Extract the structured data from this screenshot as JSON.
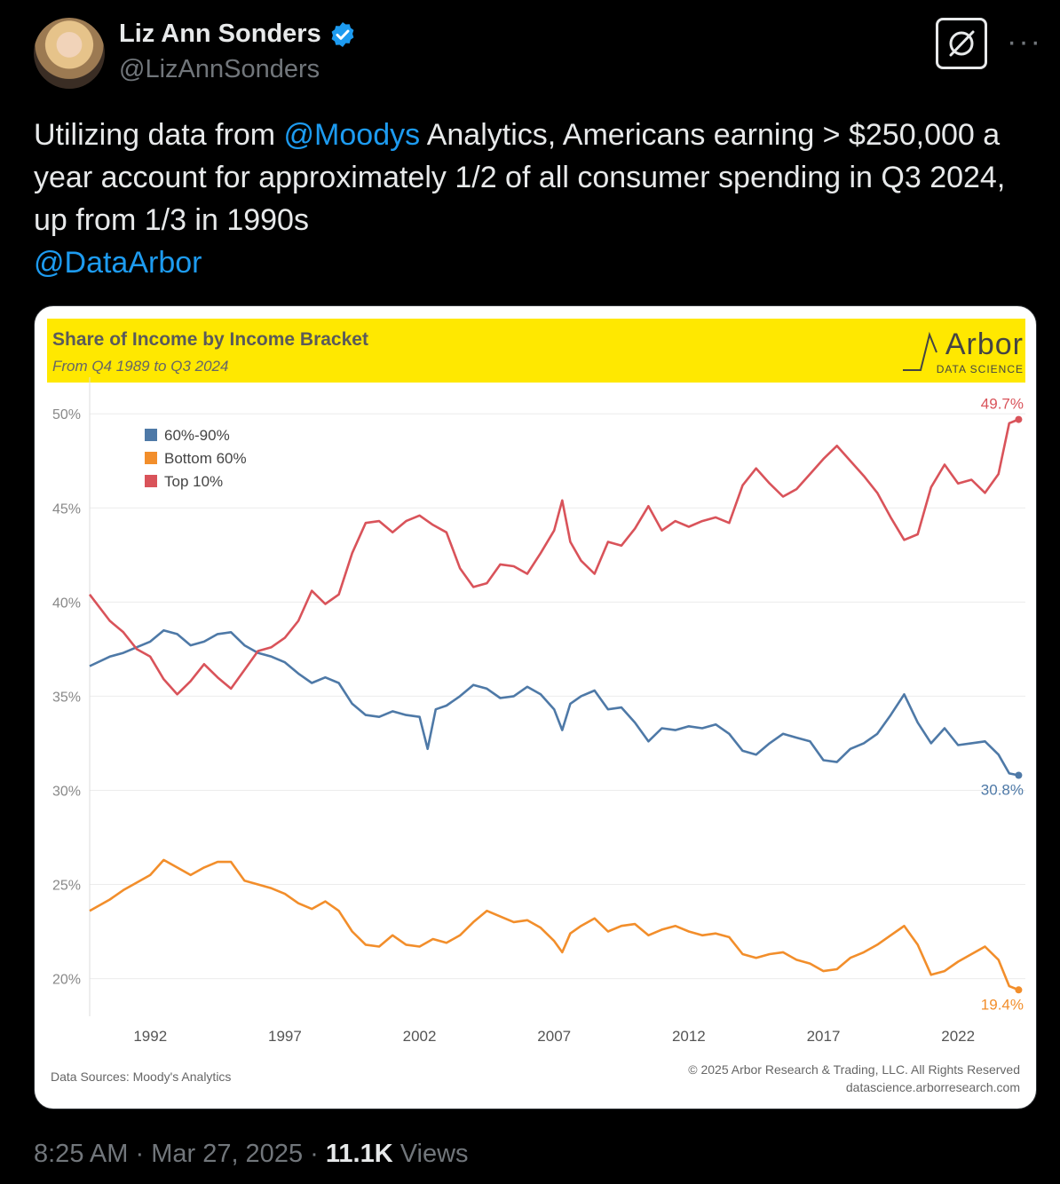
{
  "author": {
    "name": "Liz Ann Sonders",
    "handle": "@LizAnnSonders"
  },
  "tweet": {
    "part1": "Utilizing data from ",
    "mention1": "@Moodys",
    "part2": " Analytics, Americans earning > $250,000 a year account for approximately 1/2 of all consumer spending in Q3 2024, up from 1/3 in 1990s",
    "mention2": "@DataArbor"
  },
  "footer": {
    "time": "8:25 AM",
    "date": "Mar 27, 2025",
    "views_count": "11.1K",
    "views_label": " Views"
  },
  "icons": {
    "verified": "verified-badge-icon",
    "grok": "grok-icon",
    "more": "more-icon"
  },
  "colors": {
    "top10": "#d9535a",
    "mid": "#4e79a7",
    "bottom": "#f28e2b",
    "header": "#ffe800",
    "link": "#1d9bf0"
  },
  "chart": {
    "brand_word": "Arbor",
    "brand_sub": "DATA SCIENCE",
    "source_left": "Data Sources: Moody's Analytics",
    "copyright": "© 2025 Arbor Research & Trading, LLC. All Rights Reserved",
    "site": "datascience.arborresearch.com"
  },
  "chart_data": {
    "type": "line",
    "title": "Share of Income by Income Bracket",
    "subtitle": "From Q4 1989 to Q3 2024",
    "xlim": [
      1989.75,
      2024.5
    ],
    "ylim": [
      18,
      51
    ],
    "xticks": [
      1992,
      1997,
      2002,
      2007,
      2012,
      2017,
      2022
    ],
    "yticks": [
      20,
      25,
      30,
      35,
      40,
      45,
      50
    ],
    "ytick_labels": [
      "20%",
      "25%",
      "30%",
      "35%",
      "40%",
      "45%",
      "50%"
    ],
    "legend_position": "top-left",
    "grid": "horizontal",
    "series": [
      {
        "name": "60%-90%",
        "color": "#4e79a7",
        "end_label": "30.8%",
        "points": [
          [
            1989.75,
            36.6
          ],
          [
            1990.5,
            37.1
          ],
          [
            1991.0,
            37.3
          ],
          [
            1991.5,
            37.6
          ],
          [
            1992.0,
            37.9
          ],
          [
            1992.5,
            38.5
          ],
          [
            1993.0,
            38.3
          ],
          [
            1993.5,
            37.7
          ],
          [
            1994.0,
            37.9
          ],
          [
            1994.5,
            38.3
          ],
          [
            1995.0,
            38.4
          ],
          [
            1995.5,
            37.7
          ],
          [
            1996.0,
            37.3
          ],
          [
            1996.5,
            37.1
          ],
          [
            1997.0,
            36.8
          ],
          [
            1997.5,
            36.2
          ],
          [
            1998.0,
            35.7
          ],
          [
            1998.5,
            36.0
          ],
          [
            1999.0,
            35.7
          ],
          [
            1999.5,
            34.6
          ],
          [
            2000.0,
            34.0
          ],
          [
            2000.5,
            33.9
          ],
          [
            2001.0,
            34.2
          ],
          [
            2001.5,
            34.0
          ],
          [
            2002.0,
            33.9
          ],
          [
            2002.3,
            32.2
          ],
          [
            2002.6,
            34.3
          ],
          [
            2003.0,
            34.5
          ],
          [
            2003.5,
            35.0
          ],
          [
            2004.0,
            35.6
          ],
          [
            2004.5,
            35.4
          ],
          [
            2005.0,
            34.9
          ],
          [
            2005.5,
            35.0
          ],
          [
            2006.0,
            35.5
          ],
          [
            2006.5,
            35.1
          ],
          [
            2007.0,
            34.3
          ],
          [
            2007.3,
            33.2
          ],
          [
            2007.6,
            34.6
          ],
          [
            2008.0,
            35.0
          ],
          [
            2008.5,
            35.3
          ],
          [
            2009.0,
            34.3
          ],
          [
            2009.5,
            34.4
          ],
          [
            2010.0,
            33.6
          ],
          [
            2010.5,
            32.6
          ],
          [
            2011.0,
            33.3
          ],
          [
            2011.5,
            33.2
          ],
          [
            2012.0,
            33.4
          ],
          [
            2012.5,
            33.3
          ],
          [
            2013.0,
            33.5
          ],
          [
            2013.5,
            33.0
          ],
          [
            2014.0,
            32.1
          ],
          [
            2014.5,
            31.9
          ],
          [
            2015.0,
            32.5
          ],
          [
            2015.5,
            33.0
          ],
          [
            2016.0,
            32.8
          ],
          [
            2016.5,
            32.6
          ],
          [
            2017.0,
            31.6
          ],
          [
            2017.5,
            31.5
          ],
          [
            2018.0,
            32.2
          ],
          [
            2018.5,
            32.5
          ],
          [
            2019.0,
            33.0
          ],
          [
            2019.5,
            34.0
          ],
          [
            2020.0,
            35.1
          ],
          [
            2020.5,
            33.6
          ],
          [
            2021.0,
            32.5
          ],
          [
            2021.5,
            33.3
          ],
          [
            2022.0,
            32.4
          ],
          [
            2022.5,
            32.5
          ],
          [
            2023.0,
            32.6
          ],
          [
            2023.5,
            31.9
          ],
          [
            2023.9,
            30.9
          ],
          [
            2024.25,
            30.8
          ]
        ]
      },
      {
        "name": "Bottom 60%",
        "color": "#f28e2b",
        "end_label": "19.4%",
        "points": [
          [
            1989.75,
            23.6
          ],
          [
            1990.5,
            24.2
          ],
          [
            1991.0,
            24.7
          ],
          [
            1991.5,
            25.1
          ],
          [
            1992.0,
            25.5
          ],
          [
            1992.5,
            26.3
          ],
          [
            1993.0,
            25.9
          ],
          [
            1993.5,
            25.5
          ],
          [
            1994.0,
            25.9
          ],
          [
            1994.5,
            26.2
          ],
          [
            1995.0,
            26.2
          ],
          [
            1995.5,
            25.2
          ],
          [
            1996.0,
            25.0
          ],
          [
            1996.5,
            24.8
          ],
          [
            1997.0,
            24.5
          ],
          [
            1997.5,
            24.0
          ],
          [
            1998.0,
            23.7
          ],
          [
            1998.5,
            24.1
          ],
          [
            1999.0,
            23.6
          ],
          [
            1999.5,
            22.5
          ],
          [
            2000.0,
            21.8
          ],
          [
            2000.5,
            21.7
          ],
          [
            2001.0,
            22.3
          ],
          [
            2001.5,
            21.8
          ],
          [
            2002.0,
            21.7
          ],
          [
            2002.5,
            22.1
          ],
          [
            2003.0,
            21.9
          ],
          [
            2003.5,
            22.3
          ],
          [
            2004.0,
            23.0
          ],
          [
            2004.5,
            23.6
          ],
          [
            2005.0,
            23.3
          ],
          [
            2005.5,
            23.0
          ],
          [
            2006.0,
            23.1
          ],
          [
            2006.5,
            22.7
          ],
          [
            2007.0,
            22.0
          ],
          [
            2007.3,
            21.4
          ],
          [
            2007.6,
            22.4
          ],
          [
            2008.0,
            22.8
          ],
          [
            2008.5,
            23.2
          ],
          [
            2009.0,
            22.5
          ],
          [
            2009.5,
            22.8
          ],
          [
            2010.0,
            22.9
          ],
          [
            2010.5,
            22.3
          ],
          [
            2011.0,
            22.6
          ],
          [
            2011.5,
            22.8
          ],
          [
            2012.0,
            22.5
          ],
          [
            2012.5,
            22.3
          ],
          [
            2013.0,
            22.4
          ],
          [
            2013.5,
            22.2
          ],
          [
            2014.0,
            21.3
          ],
          [
            2014.5,
            21.1
          ],
          [
            2015.0,
            21.3
          ],
          [
            2015.5,
            21.4
          ],
          [
            2016.0,
            21.0
          ],
          [
            2016.5,
            20.8
          ],
          [
            2017.0,
            20.4
          ],
          [
            2017.5,
            20.5
          ],
          [
            2018.0,
            21.1
          ],
          [
            2018.5,
            21.4
          ],
          [
            2019.0,
            21.8
          ],
          [
            2019.5,
            22.3
          ],
          [
            2020.0,
            22.8
          ],
          [
            2020.5,
            21.8
          ],
          [
            2021.0,
            20.2
          ],
          [
            2021.5,
            20.4
          ],
          [
            2022.0,
            20.9
          ],
          [
            2022.5,
            21.3
          ],
          [
            2023.0,
            21.7
          ],
          [
            2023.5,
            21.0
          ],
          [
            2023.9,
            19.6
          ],
          [
            2024.25,
            19.4
          ]
        ]
      },
      {
        "name": "Top 10%",
        "color": "#d9535a",
        "end_label": "49.7%",
        "points": [
          [
            1989.75,
            40.4
          ],
          [
            1990.5,
            39.0
          ],
          [
            1991.0,
            38.4
          ],
          [
            1991.5,
            37.5
          ],
          [
            1992.0,
            37.1
          ],
          [
            1992.5,
            35.9
          ],
          [
            1993.0,
            35.1
          ],
          [
            1993.5,
            35.8
          ],
          [
            1994.0,
            36.7
          ],
          [
            1994.5,
            36.0
          ],
          [
            1995.0,
            35.4
          ],
          [
            1995.5,
            36.4
          ],
          [
            1996.0,
            37.4
          ],
          [
            1996.5,
            37.6
          ],
          [
            1997.0,
            38.1
          ],
          [
            1997.5,
            39.0
          ],
          [
            1998.0,
            40.6
          ],
          [
            1998.5,
            39.9
          ],
          [
            1999.0,
            40.4
          ],
          [
            1999.5,
            42.6
          ],
          [
            2000.0,
            44.2
          ],
          [
            2000.5,
            44.3
          ],
          [
            2001.0,
            43.7
          ],
          [
            2001.5,
            44.3
          ],
          [
            2002.0,
            44.6
          ],
          [
            2002.5,
            44.1
          ],
          [
            2003.0,
            43.7
          ],
          [
            2003.5,
            41.8
          ],
          [
            2004.0,
            40.8
          ],
          [
            2004.5,
            41.0
          ],
          [
            2005.0,
            42.0
          ],
          [
            2005.5,
            41.9
          ],
          [
            2006.0,
            41.5
          ],
          [
            2006.5,
            42.6
          ],
          [
            2007.0,
            43.8
          ],
          [
            2007.3,
            45.4
          ],
          [
            2007.6,
            43.2
          ],
          [
            2008.0,
            42.2
          ],
          [
            2008.5,
            41.5
          ],
          [
            2009.0,
            43.2
          ],
          [
            2009.5,
            43.0
          ],
          [
            2010.0,
            43.9
          ],
          [
            2010.5,
            45.1
          ],
          [
            2011.0,
            43.8
          ],
          [
            2011.5,
            44.3
          ],
          [
            2012.0,
            44.0
          ],
          [
            2012.5,
            44.3
          ],
          [
            2013.0,
            44.5
          ],
          [
            2013.5,
            44.2
          ],
          [
            2014.0,
            46.2
          ],
          [
            2014.5,
            47.1
          ],
          [
            2015.0,
            46.3
          ],
          [
            2015.5,
            45.6
          ],
          [
            2016.0,
            46.0
          ],
          [
            2016.5,
            46.8
          ],
          [
            2017.0,
            47.6
          ],
          [
            2017.5,
            48.3
          ],
          [
            2018.0,
            47.5
          ],
          [
            2018.5,
            46.7
          ],
          [
            2019.0,
            45.8
          ],
          [
            2019.5,
            44.5
          ],
          [
            2020.0,
            43.3
          ],
          [
            2020.5,
            43.6
          ],
          [
            2021.0,
            46.1
          ],
          [
            2021.5,
            47.3
          ],
          [
            2022.0,
            46.3
          ],
          [
            2022.5,
            46.5
          ],
          [
            2023.0,
            45.8
          ],
          [
            2023.5,
            46.8
          ],
          [
            2023.9,
            49.5
          ],
          [
            2024.25,
            49.7
          ]
        ]
      }
    ]
  }
}
